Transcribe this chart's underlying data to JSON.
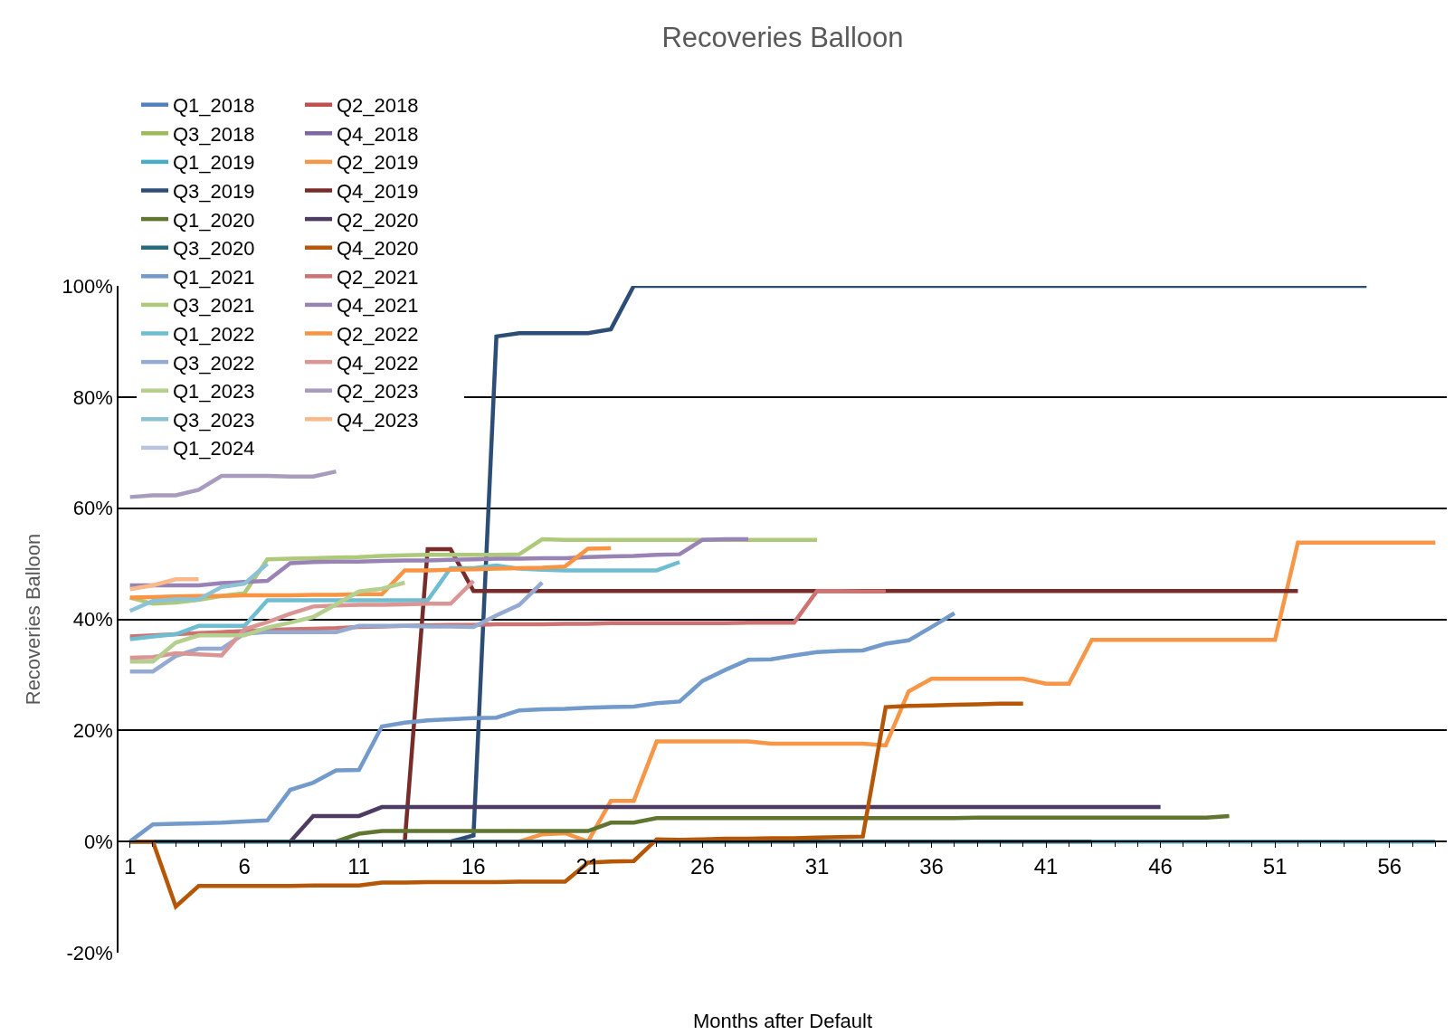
{
  "chart_data": {
    "type": "line",
    "title": "Recoveries Balloon",
    "xlabel": "Months after Default",
    "ylabel": "Recoveries Balloon",
    "x": [
      1,
      2,
      3,
      4,
      5,
      6,
      7,
      8,
      9,
      10,
      11,
      12,
      13,
      14,
      15,
      16,
      17,
      18,
      19,
      20,
      21,
      22,
      23,
      24,
      25,
      26,
      27,
      28,
      29,
      30,
      31,
      32,
      33,
      34,
      35,
      36,
      37,
      38,
      39,
      40,
      41,
      42,
      43,
      44,
      45,
      46,
      47,
      48,
      49,
      50,
      51,
      52,
      53,
      54,
      55,
      56,
      57,
      58
    ],
    "xlim": [
      0.5,
      58.5
    ],
    "xticks": [
      1,
      6,
      11,
      16,
      21,
      26,
      31,
      36,
      41,
      46,
      51,
      56
    ],
    "ylim": [
      -20,
      100
    ],
    "yticks": [
      {
        "value": -20,
        "label": "-20%"
      },
      {
        "value": 0,
        "label": "0%"
      },
      {
        "value": 20,
        "label": "20%"
      },
      {
        "value": 40,
        "label": "40%"
      },
      {
        "value": 60,
        "label": "60%"
      },
      {
        "value": 80,
        "label": "80%"
      },
      {
        "value": 100,
        "label": "100%"
      }
    ],
    "grid": "y",
    "legend": "top",
    "marker": "none",
    "line_style": "solid",
    "series": [
      {
        "name": "Q1_2018",
        "color": "#4f81bd",
        "values": [
          null,
          null,
          null,
          null,
          null,
          null,
          null,
          null,
          null,
          null,
          null,
          null,
          null,
          null,
          null,
          null,
          null,
          null,
          null,
          null,
          null,
          null,
          null,
          null,
          null,
          null,
          null,
          null,
          null,
          null,
          null,
          null,
          null,
          null,
          null,
          null,
          null,
          null,
          null,
          null,
          null,
          null,
          null,
          null,
          null,
          null,
          null,
          null,
          null,
          null,
          null,
          null,
          null,
          null,
          null,
          null,
          null,
          null
        ]
      },
      {
        "name": "Q2_2018",
        "color": "#c0504d",
        "values": [
          null,
          null,
          null,
          null,
          null,
          null,
          null,
          null,
          null,
          null,
          null,
          null,
          null,
          null,
          null,
          null,
          null,
          null,
          null,
          null,
          null,
          null,
          null,
          null,
          null,
          null,
          null,
          null,
          null,
          null,
          null,
          null,
          null,
          null,
          null,
          null,
          null,
          null,
          null,
          null,
          null,
          null,
          null,
          null,
          null,
          null,
          null,
          null,
          null,
          null,
          null,
          null,
          null,
          null,
          null,
          null,
          null,
          null
        ]
      },
      {
        "name": "Q3_2018",
        "color": "#9bbb59",
        "values": [
          null,
          null,
          null,
          null,
          null,
          null,
          null,
          null,
          null,
          null,
          null,
          null,
          null,
          null,
          null,
          null,
          null,
          null,
          null,
          null,
          null,
          null,
          null,
          null,
          null,
          null,
          null,
          null,
          null,
          null,
          null,
          null,
          null,
          null,
          null,
          null,
          null,
          null,
          null,
          null,
          null,
          null,
          null,
          null,
          null,
          null,
          null,
          null,
          null,
          null,
          null,
          null,
          null,
          null,
          null,
          null,
          null,
          null
        ]
      },
      {
        "name": "Q4_2018",
        "color": "#8064a2",
        "values": [
          null,
          null,
          null,
          null,
          null,
          null,
          null,
          null,
          null,
          null,
          null,
          null,
          null,
          null,
          null,
          null,
          null,
          null,
          null,
          null,
          null,
          null,
          null,
          null,
          null,
          null,
          null,
          null,
          null,
          null,
          null,
          null,
          null,
          null,
          null,
          null,
          null,
          null,
          null,
          null,
          null,
          null,
          null,
          null,
          null,
          null,
          null,
          null,
          null,
          null,
          null,
          null,
          null,
          null,
          null,
          null,
          null,
          null
        ]
      },
      {
        "name": "Q1_2019",
        "color": "#4bacc6",
        "values": [
          null,
          null,
          null,
          null,
          null,
          null,
          null,
          null,
          null,
          null,
          null,
          null,
          null,
          null,
          null,
          null,
          null,
          null,
          null,
          null,
          null,
          null,
          null,
          null,
          null,
          null,
          null,
          null,
          null,
          null,
          null,
          null,
          null,
          null,
          null,
          null,
          null,
          null,
          null,
          null,
          null,
          null,
          0,
          0,
          0,
          0,
          0,
          0,
          0,
          0,
          0,
          0,
          0,
          0,
          0,
          0,
          0,
          0
        ]
      },
      {
        "name": "Q2_2019",
        "color": "#f79646",
        "values": [
          null,
          null,
          null,
          null,
          null,
          null,
          null,
          null,
          null,
          null,
          null,
          null,
          null,
          null,
          null,
          null,
          null,
          0,
          1.3,
          1.5,
          0,
          7.3,
          7.3,
          18,
          18,
          18,
          18,
          18,
          17.6,
          17.6,
          17.6,
          17.6,
          17.6,
          17.3,
          27,
          29.3,
          29.3,
          29.3,
          29.3,
          29.3,
          28.4,
          28.4,
          36.3,
          36.3,
          36.3,
          36.3,
          36.3,
          36.3,
          36.3,
          36.3,
          36.3,
          53.8,
          53.8,
          53.8,
          53.8,
          53.8,
          53.8,
          53.8
        ]
      },
      {
        "name": "Q3_2019",
        "color": "#2c4d75",
        "values": [
          null,
          null,
          null,
          null,
          null,
          null,
          null,
          null,
          null,
          null,
          null,
          null,
          null,
          null,
          0,
          1.1,
          90.9,
          91.5,
          91.5,
          91.5,
          91.5,
          92.2,
          100,
          100,
          100,
          100,
          100,
          100,
          100,
          100,
          100,
          100,
          100,
          100,
          100,
          100,
          100,
          100,
          100,
          100,
          100,
          100,
          100,
          100,
          100,
          100,
          100,
          100,
          100,
          100,
          100,
          100,
          100,
          100,
          100,
          null,
          null,
          null
        ]
      },
      {
        "name": "Q4_2019",
        "color": "#772c2a",
        "values": [
          null,
          null,
          null,
          null,
          null,
          null,
          null,
          null,
          null,
          null,
          null,
          null,
          0,
          52.6,
          52.6,
          45.1,
          45.1,
          45.1,
          45.1,
          45.1,
          45.1,
          45.1,
          45.1,
          45.1,
          45.1,
          45.1,
          45.1,
          45.1,
          45.1,
          45.1,
          45.1,
          45.1,
          45.1,
          45.1,
          45.1,
          45.1,
          45.1,
          45.1,
          45.1,
          45.1,
          45.1,
          45.1,
          45.1,
          45.1,
          45.1,
          45.1,
          45.1,
          45.1,
          45.1,
          45.1,
          45.1,
          45.1,
          null,
          null,
          null,
          null,
          null,
          null
        ]
      },
      {
        "name": "Q1_2020",
        "color": "#5f7530",
        "values": [
          null,
          null,
          null,
          null,
          null,
          null,
          null,
          null,
          null,
          0,
          1.4,
          1.9,
          1.9,
          1.9,
          1.9,
          1.9,
          1.9,
          1.9,
          1.9,
          1.9,
          1.9,
          3.4,
          3.4,
          4.2,
          4.2,
          4.2,
          4.2,
          4.2,
          4.2,
          4.2,
          4.2,
          4.2,
          4.2,
          4.2,
          4.2,
          4.2,
          4.2,
          4.3,
          4.3,
          4.3,
          4.3,
          4.3,
          4.3,
          4.3,
          4.3,
          4.3,
          4.3,
          4.3,
          4.6,
          null,
          null,
          null,
          null,
          null,
          null,
          null,
          null,
          null
        ]
      },
      {
        "name": "Q2_2020",
        "color": "#4d3b62",
        "values": [
          null,
          null,
          null,
          null,
          null,
          null,
          null,
          0,
          4.6,
          4.6,
          4.6,
          6.2,
          6.2,
          6.2,
          6.2,
          6.2,
          6.2,
          6.2,
          6.2,
          6.2,
          6.2,
          6.2,
          6.2,
          6.2,
          6.2,
          6.2,
          6.2,
          6.2,
          6.2,
          6.2,
          6.2,
          6.2,
          6.2,
          6.2,
          6.2,
          6.2,
          6.2,
          6.2,
          6.2,
          6.2,
          6.2,
          6.2,
          6.2,
          6.2,
          6.2,
          6.2,
          null,
          null,
          null,
          null,
          null,
          null,
          null,
          null,
          null,
          null,
          null,
          null
        ]
      },
      {
        "name": "Q3_2020",
        "color": "#276a7c",
        "values": [
          0,
          0,
          0,
          0,
          0,
          0,
          0,
          0,
          0,
          0,
          0,
          0,
          0,
          0,
          0,
          0,
          0,
          0,
          0,
          0,
          0,
          0,
          0,
          0,
          0,
          0,
          0,
          0,
          0,
          0,
          0,
          0,
          0,
          0,
          0,
          0,
          0,
          0,
          0,
          0,
          0,
          0,
          0,
          null,
          null,
          null,
          null,
          null,
          null,
          null,
          null,
          null,
          null,
          null,
          null,
          null,
          null,
          null
        ]
      },
      {
        "name": "Q4_2020",
        "color": "#b65708",
        "values": [
          0,
          0,
          -11.7,
          -8,
          -8,
          -8,
          -8,
          -8,
          -7.9,
          -7.9,
          -7.9,
          -7.4,
          -7.4,
          -7.3,
          -7.3,
          -7.3,
          -7.3,
          -7.2,
          -7.2,
          -7.2,
          -3.8,
          -3.6,
          -3.5,
          0.4,
          0.3,
          0.4,
          0.5,
          0.5,
          0.6,
          0.6,
          0.7,
          0.8,
          0.9,
          24.2,
          24.4,
          24.5,
          24.6,
          24.7,
          24.8,
          24.8,
          null,
          null,
          null,
          null,
          null,
          null,
          null,
          null,
          null,
          null,
          null,
          null,
          null,
          null,
          null,
          null,
          null,
          null
        ]
      },
      {
        "name": "Q1_2021",
        "color": "#729aca",
        "values": [
          0,
          3.1,
          3.2,
          3.3,
          3.4,
          3.6,
          3.8,
          9.3,
          10.6,
          12.8,
          12.9,
          20.7,
          21.4,
          21.8,
          22,
          22.2,
          22.3,
          23.6,
          23.8,
          23.9,
          24.1,
          24.2,
          24.3,
          24.9,
          25.2,
          28.9,
          30.9,
          32.7,
          32.8,
          33.5,
          34.1,
          34.3,
          34.4,
          35.6,
          36.2,
          38.6,
          41.1,
          null,
          null,
          null,
          null,
          null,
          null,
          null,
          null,
          null,
          null,
          null,
          null,
          null,
          null,
          null,
          null,
          null,
          null,
          null,
          null,
          null
        ]
      },
      {
        "name": "Q2_2021",
        "color": "#cd7371",
        "values": [
          36.9,
          37.1,
          37.3,
          37.5,
          37.7,
          37.9,
          38.1,
          38.2,
          38.3,
          38.4,
          38.6,
          38.7,
          38.8,
          38.9,
          39,
          39,
          39.1,
          39.1,
          39.1,
          39.2,
          39.2,
          39.3,
          39.3,
          39.3,
          39.3,
          39.3,
          39.3,
          39.4,
          39.4,
          39.4,
          45.1,
          45.1,
          45,
          45,
          null,
          null,
          null,
          null,
          null,
          null,
          null,
          null,
          null,
          null,
          null,
          null,
          null,
          null,
          null,
          null,
          null,
          null,
          null,
          null,
          null,
          null,
          null,
          null
        ]
      },
      {
        "name": "Q3_2021",
        "color": "#afc97a",
        "values": [
          43.9,
          42.8,
          43,
          43.5,
          44.2,
          44.7,
          50.8,
          50.9,
          51,
          51.1,
          51.2,
          51.4,
          51.5,
          51.6,
          51.6,
          51.6,
          51.6,
          51.7,
          54.4,
          54.3,
          54.3,
          54.3,
          54.3,
          54.3,
          54.3,
          54.3,
          54.3,
          54.3,
          54.3,
          54.3,
          54.3,
          null,
          null,
          null,
          null,
          null,
          null,
          null,
          null,
          null,
          null,
          null,
          null,
          null,
          null,
          null,
          null,
          null,
          null,
          null,
          null,
          null,
          null,
          null,
          null,
          null,
          null,
          null
        ]
      },
      {
        "name": "Q4_2021",
        "color": "#9983b5",
        "values": [
          46.1,
          46.1,
          46.1,
          46.1,
          46.5,
          46.7,
          46.9,
          50.1,
          50.3,
          50.4,
          50.4,
          50.5,
          50.6,
          50.6,
          50.7,
          50.8,
          50.9,
          50.9,
          51,
          51,
          51.2,
          51.3,
          51.4,
          51.6,
          51.7,
          54.3,
          54.4,
          54.4,
          null,
          null,
          null,
          null,
          null,
          null,
          null,
          null,
          null,
          null,
          null,
          null,
          null,
          null,
          null,
          null,
          null,
          null,
          null,
          null,
          null,
          null,
          null,
          null,
          null,
          null,
          null,
          null,
          null,
          null
        ]
      },
      {
        "name": "Q1_2022",
        "color": "#6fbdd1",
        "values": [
          36.4,
          36.9,
          37.3,
          38.8,
          38.8,
          38.8,
          43.4,
          43.4,
          43.4,
          43.4,
          43.4,
          43.4,
          43.4,
          43.4,
          49.2,
          49.2,
          49.7,
          49.1,
          48.9,
          48.8,
          48.8,
          48.8,
          48.8,
          48.8,
          50.3,
          null,
          null,
          null,
          null,
          null,
          null,
          null,
          null,
          null,
          null,
          null,
          null,
          null,
          null,
          null,
          null,
          null,
          null,
          null,
          null,
          null,
          null,
          null,
          null,
          null,
          null,
          null,
          null,
          null,
          null,
          null,
          null,
          null
        ]
      },
      {
        "name": "Q2_2022",
        "color": "#f99443",
        "values": [
          43.9,
          44,
          44.1,
          44.2,
          44.2,
          44.3,
          44.3,
          44.3,
          44.4,
          44.4,
          44.5,
          44.5,
          48.8,
          48.8,
          48.9,
          49,
          49.1,
          49.2,
          49.3,
          49.5,
          52.7,
          52.8,
          null,
          null,
          null,
          null,
          null,
          null,
          null,
          null,
          null,
          null,
          null,
          null,
          null,
          null,
          null,
          null,
          null,
          null,
          null,
          null,
          null,
          null,
          null,
          null,
          null,
          null,
          null,
          null,
          null,
          null,
          null,
          null,
          null,
          null,
          null,
          null
        ]
      },
      {
        "name": "Q3_2022",
        "color": "#95aad1",
        "values": [
          30.6,
          30.6,
          33.4,
          34.7,
          34.7,
          37.4,
          37.7,
          37.7,
          37.7,
          37.7,
          38.8,
          38.8,
          38.8,
          38.7,
          38.7,
          38.6,
          40.7,
          42.6,
          46.6,
          null,
          null,
          null,
          null,
          null,
          null,
          null,
          null,
          null,
          null,
          null,
          null,
          null,
          null,
          null,
          null,
          null,
          null,
          null,
          null,
          null,
          null,
          null,
          null,
          null,
          null,
          null,
          null,
          null,
          null,
          null,
          null,
          null,
          null,
          null,
          null,
          null,
          null,
          null
        ]
      },
      {
        "name": "Q4_2022",
        "color": "#d99694",
        "values": [
          33.1,
          33.2,
          33.9,
          33.7,
          33.5,
          38.2,
          39.5,
          41,
          42.3,
          42.5,
          42.6,
          42.6,
          42.7,
          42.8,
          42.8,
          46.9,
          null,
          null,
          null,
          null,
          null,
          null,
          null,
          null,
          null,
          null,
          null,
          null,
          null,
          null,
          null,
          null,
          null,
          null,
          null,
          null,
          null,
          null,
          null,
          null,
          null,
          null,
          null,
          null,
          null,
          null,
          null,
          null,
          null,
          null,
          null,
          null,
          null,
          null,
          null,
          null,
          null,
          null
        ]
      },
      {
        "name": "Q1_2023",
        "color": "#b5cf8e",
        "values": [
          32.4,
          32.4,
          35.8,
          37.1,
          37.1,
          37.1,
          38.5,
          39.4,
          40.4,
          42.7,
          45,
          45.5,
          46.6,
          null,
          null,
          null,
          null,
          null,
          null,
          null,
          null,
          null,
          null,
          null,
          null,
          null,
          null,
          null,
          null,
          null,
          null,
          null,
          null,
          null,
          null,
          null,
          null,
          null,
          null,
          null,
          null,
          null,
          null,
          null,
          null,
          null,
          null,
          null,
          null,
          null,
          null,
          null,
          null,
          null,
          null,
          null,
          null,
          null
        ]
      },
      {
        "name": "Q2_2023",
        "color": "#a99bbd",
        "values": [
          62,
          62.3,
          62.3,
          63.3,
          65.8,
          65.8,
          65.8,
          65.7,
          65.7,
          66.6,
          null,
          null,
          null,
          null,
          null,
          null,
          null,
          null,
          null,
          null,
          null,
          null,
          null,
          null,
          null,
          null,
          null,
          null,
          null,
          null,
          null,
          null,
          null,
          null,
          null,
          null,
          null,
          null,
          null,
          null,
          null,
          null,
          null,
          null,
          null,
          null,
          null,
          null,
          null,
          null,
          null,
          null,
          null,
          null,
          null,
          null,
          null,
          null
        ]
      },
      {
        "name": "Q3_2023",
        "color": "#8cc2d6",
        "values": [
          41.5,
          43.3,
          43.6,
          43.6,
          45.8,
          46.4,
          50,
          null,
          null,
          null,
          null,
          null,
          null,
          null,
          null,
          null,
          null,
          null,
          null,
          null,
          null,
          null,
          null,
          null,
          null,
          null,
          null,
          null,
          null,
          null,
          null,
          null,
          null,
          null,
          null,
          null,
          null,
          null,
          null,
          null,
          null,
          null,
          null,
          null,
          null,
          null,
          null,
          null,
          null,
          null,
          null,
          null,
          null,
          null,
          null,
          null,
          null,
          null
        ]
      },
      {
        "name": "Q4_2023",
        "color": "#f9b98a",
        "values": [
          45.4,
          46.1,
          47.2,
          47.2,
          null,
          null,
          null,
          null,
          null,
          null,
          null,
          null,
          null,
          null,
          null,
          null,
          null,
          null,
          null,
          null,
          null,
          null,
          null,
          null,
          null,
          null,
          null,
          null,
          null,
          null,
          null,
          null,
          null,
          null,
          null,
          null,
          null,
          null,
          null,
          null,
          null,
          null,
          null,
          null,
          null,
          null,
          null,
          null,
          null,
          null,
          null,
          null,
          null,
          null,
          null,
          null,
          null,
          null
        ]
      },
      {
        "name": "Q1_2024",
        "color": "#b8c4dd",
        "values": [
          null,
          null,
          null,
          null,
          null,
          null,
          null,
          null,
          null,
          null,
          null,
          null,
          null,
          null,
          null,
          null,
          null,
          null,
          null,
          null,
          null,
          null,
          null,
          null,
          null,
          null,
          null,
          null,
          null,
          null,
          null,
          null,
          null,
          null,
          null,
          null,
          null,
          null,
          null,
          null,
          null,
          null,
          null,
          null,
          null,
          null,
          null,
          null,
          null,
          null,
          null,
          null,
          null,
          null,
          null,
          null,
          null,
          null
        ]
      }
    ]
  }
}
